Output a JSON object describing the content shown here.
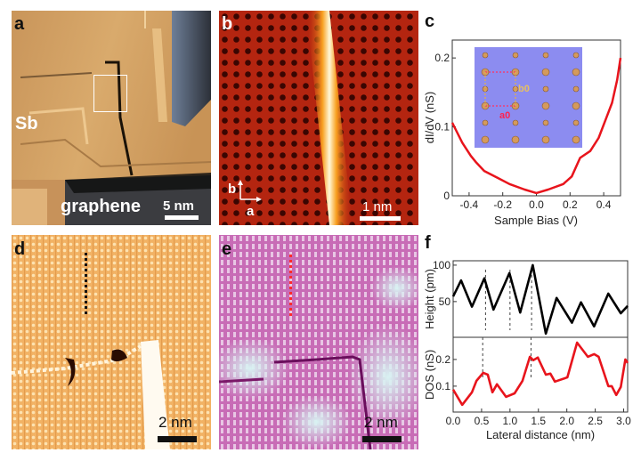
{
  "figure": {
    "panels": {
      "a": {
        "label": "a",
        "material_label": "Sb",
        "substrate_label": "graphene",
        "scale_label": "5 nm",
        "colors": {
          "terrace": "#d9a866",
          "substrate": "#3a3a3a",
          "box": "#ffffff"
        }
      },
      "b": {
        "label": "b",
        "scale_label": "1 nm",
        "axis_b": "b",
        "axis_a": "a",
        "colors": {
          "background": "#a01a08",
          "stripe": "#fff3c0"
        }
      },
      "d": {
        "label": "d",
        "scale_label": "2 nm",
        "colors": {
          "background": "#f0b060",
          "marker": "#111111"
        }
      },
      "e": {
        "label": "e",
        "scale_label": "2 nm",
        "colors": {
          "background": "#c868b4",
          "marker": "#ff2a2a"
        }
      },
      "c": {
        "label": "c",
        "inset_a0": "a0",
        "inset_b0": "b0"
      },
      "f": {
        "label": "f"
      }
    }
  },
  "chart_data": [
    {
      "panel": "c",
      "type": "line",
      "title": "",
      "xlabel": "Sample Bias (V)",
      "ylabel": "dI/dV (nS)",
      "xlim": [
        -0.5,
        0.5
      ],
      "ylim": [
        0,
        0.226
      ],
      "xticks": [
        -0.4,
        -0.2,
        0.0,
        0.2,
        0.4
      ],
      "xtick_labels": [
        "-0.4",
        "-0.2",
        "0.0",
        "0.2",
        "0.4"
      ],
      "yticks": [
        0,
        0.1,
        0.2
      ],
      "ytick_labels": [
        "0",
        "0.1",
        "0.2"
      ],
      "grid": false,
      "series": [
        {
          "name": "dI/dV",
          "color": "#e8141c",
          "x": [
            -0.5,
            -0.44,
            -0.39,
            -0.36,
            -0.31,
            -0.23,
            -0.16,
            -0.07,
            0.0,
            0.07,
            0.16,
            0.21,
            0.26,
            0.32,
            0.37,
            0.42,
            0.45,
            0.48,
            0.5
          ],
          "y": [
            0.106,
            0.077,
            0.058,
            0.049,
            0.036,
            0.026,
            0.017,
            0.009,
            0.004,
            0.009,
            0.017,
            0.028,
            0.055,
            0.065,
            0.084,
            0.116,
            0.135,
            0.168,
            0.2
          ]
        }
      ],
      "inset": {
        "description": "rectangular lattice model",
        "labels": [
          "a0",
          "b0"
        ],
        "background": "#8c8cf0"
      }
    },
    {
      "panel": "f",
      "type": "line",
      "xlabel": "Lateral distance (nm)",
      "xlim": [
        0,
        3.07
      ],
      "xticks": [
        0.0,
        0.5,
        1.0,
        1.5,
        2.0,
        2.5,
        3.0
      ],
      "xtick_labels": [
        "0.0",
        "0.5",
        "1.0",
        "1.5",
        "2.0",
        "2.5",
        "3.0"
      ],
      "grid": false,
      "subplots": [
        {
          "name": "height",
          "ylabel": "Height (pm)",
          "ylim": [
            1,
            106
          ],
          "yticks": [
            50,
            100
          ],
          "ytick_labels": [
            "50",
            "100"
          ],
          "color": "#000000",
          "x": [
            0.0,
            0.14,
            0.33,
            0.55,
            0.71,
            0.99,
            1.18,
            1.4,
            1.63,
            1.82,
            2.09,
            2.25,
            2.48,
            2.73,
            2.95,
            3.07
          ],
          "y": [
            57,
            79,
            43,
            82,
            39,
            89,
            35,
            100,
            6,
            55,
            21,
            49,
            16,
            61,
            34,
            44
          ],
          "guides_x": [
            0.57,
            1.0,
            1.38
          ]
        },
        {
          "name": "dos",
          "ylabel": "DOS (nS)",
          "ylim": [
            0.003,
            0.283
          ],
          "yticks": [
            0.1,
            0.2
          ],
          "ytick_labels": [
            "0.1",
            "0.2"
          ],
          "color": "#e8141c",
          "x": [
            0.0,
            0.16,
            0.33,
            0.41,
            0.53,
            0.61,
            0.69,
            0.77,
            0.93,
            1.08,
            1.22,
            1.35,
            1.41,
            1.49,
            1.63,
            1.71,
            1.79,
            2.01,
            2.18,
            2.37,
            2.48,
            2.56,
            2.73,
            2.79,
            2.87,
            2.95,
            3.03,
            3.07
          ],
          "y": [
            0.087,
            0.03,
            0.077,
            0.12,
            0.15,
            0.143,
            0.077,
            0.107,
            0.06,
            0.073,
            0.12,
            0.21,
            0.197,
            0.207,
            0.143,
            0.147,
            0.117,
            0.133,
            0.263,
            0.21,
            0.22,
            0.21,
            0.1,
            0.1,
            0.067,
            0.097,
            0.2,
            0.187
          ],
          "guides_x": [
            0.52,
            1.37
          ]
        }
      ]
    }
  ]
}
